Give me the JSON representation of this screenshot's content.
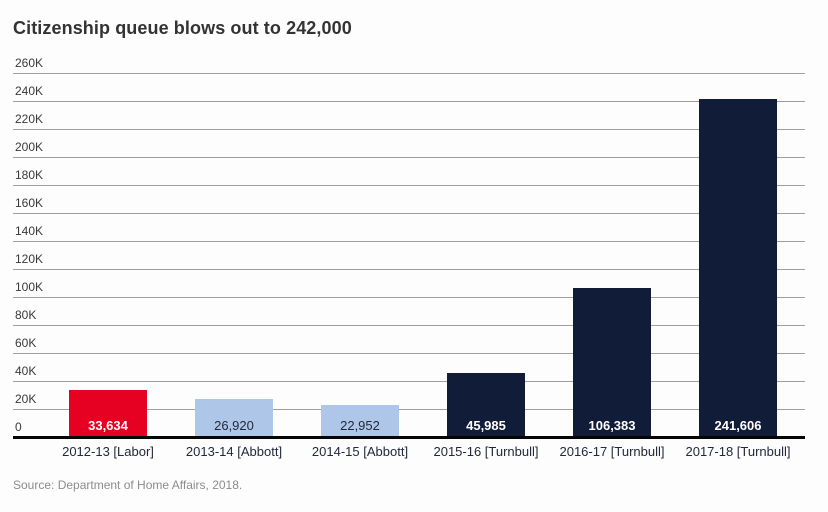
{
  "title": "Citizenship queue blows out to 242,000",
  "source": "Source: Department of Home Affairs, 2018.",
  "chart_data": {
    "type": "bar",
    "title": "Citizenship queue blows out to 242,000",
    "categories": [
      "2012-13 [Labor]",
      "2013-14 [Abbott]",
      "2014-15 [Abbott]",
      "2015-16 [Turnbull]",
      "2016-17 [Turnbull]",
      "2017-18 [Turnbull]"
    ],
    "values": [
      33634,
      26920,
      22952,
      45985,
      106383,
      241606
    ],
    "value_labels": [
      "33,634",
      "26,920",
      "22,952",
      "45,985",
      "106,383",
      "241,606"
    ],
    "bar_colors": [
      "#e60021",
      "#aec6e8",
      "#aec6e8",
      "#111c38",
      "#111c38",
      "#111c38"
    ],
    "value_label_colors": [
      "#ffffff",
      "#23293b",
      "#23293b",
      "#ffffff",
      "#ffffff",
      "#ffffff"
    ],
    "value_label_bold": [
      true,
      false,
      false,
      true,
      true,
      true
    ],
    "xlabel": "",
    "ylabel": "",
    "ylim": [
      0,
      260000
    ],
    "ytick_step": 20000,
    "ytick_labels": [
      "0",
      "20K",
      "40K",
      "60K",
      "80K",
      "100K",
      "120K",
      "140K",
      "160K",
      "180K",
      "200K",
      "220K",
      "240K",
      "260K"
    ],
    "grid": true,
    "legend": false,
    "annotations": [],
    "source": "Source: Department of Home Affairs, 2018.",
    "colors": {
      "grid": "#9e9e9e",
      "axis_line": "#050505",
      "title": "#333333",
      "tick_text": "#3a3a3a",
      "category_text": "#23293b",
      "source_text": "#8c8c8c",
      "background": "#fdfdfd"
    }
  }
}
